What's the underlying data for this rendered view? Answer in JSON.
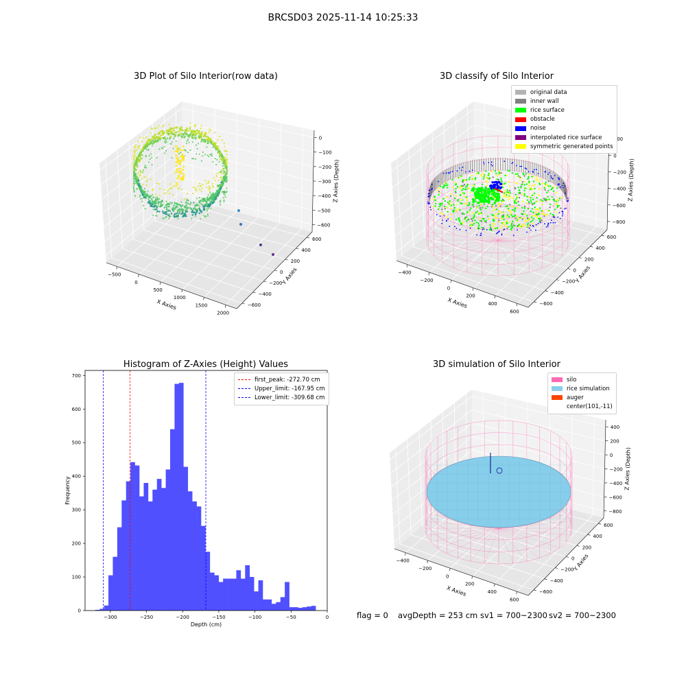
{
  "suptitle": "BRCSD03 2025-11-14 10:25:33",
  "footer": {
    "flag": "flag = 0",
    "avg_depth": "avgDepth = 253 cm",
    "sv1": "sv1 = 700~2300",
    "sv2": "sv2 = 700~2300"
  },
  "chart_data": [
    {
      "type": "scatter",
      "title": "3D Plot of Silo Interior(row data)",
      "xlabel": "X Axies",
      "ylabel": "Y Axies",
      "zlabel": "Z Axies (Depth)",
      "x_ticks": [
        "−500",
        "0",
        "500",
        "1000",
        "1500",
        "2000"
      ],
      "y_ticks": [
        "600",
        "400",
        "200",
        "0",
        "−200",
        "−400",
        "−600"
      ],
      "z_ticks": [
        "0",
        "−100",
        "−200",
        "−300",
        "−400",
        "−500",
        "−600"
      ],
      "colormap": "viridis",
      "colors": {
        "ring": "#8fd44a",
        "ring_dark": "#2a9a8a",
        "column": "#f5e62a"
      }
    },
    {
      "type": "scatter",
      "title": "3D classify of Silo Interior",
      "xlabel": "X Axies",
      "ylabel": "Y Axies",
      "zlabel": "Z Axies (Depth)",
      "x_ticks": [
        "−400",
        "−200",
        "0",
        "200",
        "400",
        "600"
      ],
      "y_ticks": [
        "600",
        "400",
        "200",
        "0",
        "−200",
        "−400",
        "−600"
      ],
      "z_ticks": [
        "200",
        "0",
        "−200",
        "−400",
        "−600",
        "−800"
      ],
      "legend": [
        {
          "label": "original data",
          "color": "#b3b3b3"
        },
        {
          "label": "inner wall",
          "color": "#808080"
        },
        {
          "label": "rice surface",
          "color": "#00ff00"
        },
        {
          "label": "obstacle",
          "color": "#ff0000"
        },
        {
          "label": "noise",
          "color": "#0000ff"
        },
        {
          "label": "interpolated rice surface",
          "color": "#800080"
        },
        {
          "label": "symmetric generated points",
          "color": "#ffff00"
        }
      ],
      "colors": {
        "silo": "#ff77bb"
      }
    },
    {
      "type": "bar",
      "title": "Histogram of Z-Axies (Height) Values",
      "xlabel": "Depth (cm)",
      "ylabel": "Frequency",
      "xlim": [
        -335,
        0
      ],
      "ylim": [
        0,
        715
      ],
      "x_ticks": [
        -300,
        -250,
        -200,
        -150,
        -100,
        -50,
        0
      ],
      "y_ticks": [
        0,
        100,
        200,
        300,
        400,
        500,
        600,
        700
      ],
      "bin_start": -321,
      "bin_width": 6.1,
      "values": [
        2,
        5,
        15,
        105,
        160,
        248,
        328,
        385,
        442,
        432,
        340,
        380,
        325,
        360,
        392,
        365,
        420,
        540,
        675,
        678,
        428,
        355,
        325,
        310,
        252,
        175,
        113,
        105,
        85,
        95,
        95,
        95,
        120,
        95,
        135,
        100,
        57,
        90,
        33,
        33,
        20,
        25,
        40,
        85,
        10,
        10,
        8,
        10,
        12,
        14
      ],
      "bar_color": "#5050ff",
      "reference_lines": [
        {
          "label": "first_peak: -272.70 cm",
          "x": -272.7,
          "color": "#ff0000"
        },
        {
          "label": "Upper_limit: -167.95 cm",
          "x": -167.95,
          "color": "#0000ff"
        },
        {
          "label": "Lower_limit: -309.68 cm",
          "x": -309.68,
          "color": "#0000ff"
        }
      ],
      "legend_position": "top-right"
    },
    {
      "type": "scatter",
      "title": "3D simulation of Silo Interior",
      "xlabel": "X Axies",
      "ylabel": "Y Axies",
      "zlabel": "Z Axies (Depth)",
      "x_ticks": [
        "−400",
        "−200",
        "0",
        "200",
        "400",
        "600"
      ],
      "y_ticks": [
        "600",
        "400",
        "200",
        "0",
        "−200",
        "−400",
        "−600"
      ],
      "z_ticks": [
        "400",
        "200",
        "0",
        "−200",
        "−400",
        "−600",
        "−800"
      ],
      "legend": [
        {
          "label": "silo",
          "color": "#ff69b4"
        },
        {
          "label": "rice simulation",
          "color": "#87ceeb"
        },
        {
          "label": "auger",
          "color": "#ff4500"
        },
        {
          "label": "center(101,-11)",
          "color": ""
        }
      ],
      "colors": {
        "silo": "#ff69b4",
        "rice": "#87ceeb",
        "auger": "#00008b"
      }
    }
  ]
}
